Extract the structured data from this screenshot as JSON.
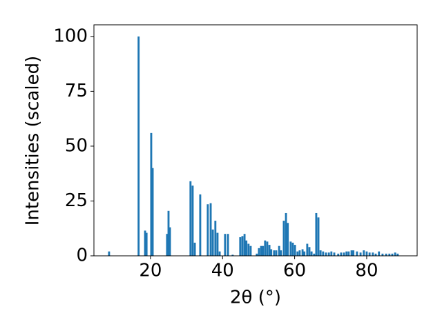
{
  "chart_data": {
    "type": "bar",
    "xlabel": "2θ (°)",
    "ylabel": "Intensities (scaled)",
    "color": "#1f77b4",
    "bar_width": 0.55,
    "x": [
      8.5,
      16.7,
      18.5,
      18.9,
      20.2,
      20.6,
      24.6,
      25.0,
      25.4,
      31.1,
      31.7,
      32.3,
      33.8,
      35.9,
      36.7,
      37.3,
      38.0,
      38.6,
      39.2,
      40.7,
      41.5,
      42.8,
      44.9,
      45.5,
      46.1,
      46.6,
      47.2,
      47.8,
      49.5,
      50.1,
      50.7,
      51.2,
      51.8,
      52.4,
      53.0,
      53.5,
      54.3,
      54.9,
      55.7,
      56.2,
      57.0,
      57.6,
      58.1,
      58.9,
      59.5,
      60.1,
      60.8,
      61.4,
      62.2,
      62.7,
      63.5,
      64.1,
      64.7,
      65.4,
      66.0,
      66.6,
      67.2,
      67.9,
      68.7,
      69.5,
      70.2,
      71.0,
      72.1,
      72.9,
      73.7,
      74.4,
      75.0,
      75.8,
      76.3,
      77.3,
      78.3,
      79.2,
      80.0,
      80.8,
      81.7,
      82.5,
      83.4,
      84.4,
      85.4,
      86.3,
      87.1,
      87.9,
      88.6
    ],
    "values": [
      2,
      100,
      11.5,
      10.5,
      56,
      40,
      10,
      20.5,
      13,
      34,
      32,
      6,
      28,
      23.5,
      24,
      12,
      16,
      10.5,
      2,
      10,
      10,
      0.5,
      8.5,
      9,
      10,
      7,
      5.5,
      4.5,
      1,
      3.5,
      4.5,
      4.5,
      7,
      6.5,
      5,
      3,
      2.5,
      2.5,
      4.5,
      2.5,
      16,
      19.5,
      15,
      6.5,
      6,
      5,
      2,
      2.5,
      3,
      2,
      5.5,
      4,
      2,
      1,
      19.5,
      17.5,
      2.5,
      2,
      1.5,
      1.5,
      2,
      1.5,
      1,
      1.5,
      1.5,
      2,
      2,
      2.5,
      2.5,
      2,
      1.5,
      2.5,
      2,
      1.5,
      1.5,
      1,
      2,
      1,
      1,
      1,
      1,
      1.5,
      1
    ],
    "xlim": [
      4.3,
      94.0
    ],
    "ylim": [
      0,
      105.3
    ],
    "xticks": [
      20,
      40,
      60,
      80
    ],
    "yticks": [
      0,
      25,
      50,
      75,
      100
    ]
  }
}
